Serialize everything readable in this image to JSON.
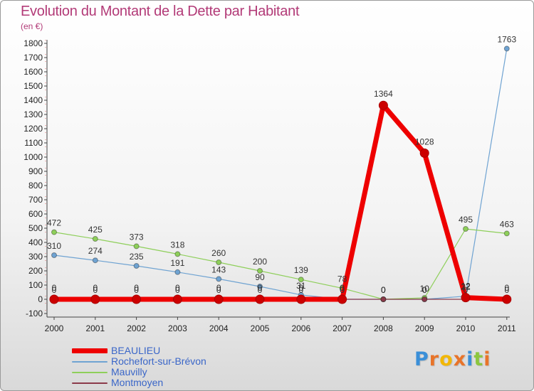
{
  "brand": {
    "text": "Proxiti",
    "colors": [
      "#3a8fd8",
      "#e8742a",
      "#f2b705",
      "#e8742a",
      "#3a8fd8",
      "#8cc63f",
      "#e8742a"
    ]
  },
  "chart_data": {
    "type": "line",
    "title": "Evolution du Montant de la Dette par Habitant",
    "unit_label": "(en €)",
    "x": [
      "2000",
      "2001",
      "2002",
      "2003",
      "2004",
      "2005",
      "2006",
      "2007",
      "2008",
      "2009",
      "2010",
      "2011"
    ],
    "ylim": [
      -100,
      1800
    ],
    "yticks": [
      -100,
      0,
      100,
      200,
      300,
      400,
      500,
      600,
      700,
      800,
      900,
      1000,
      1100,
      1200,
      1300,
      1400,
      1500,
      1600,
      1700,
      1800
    ],
    "grid": false,
    "legend_position": "bottom-left",
    "series": [
      {
        "name": "BEAULIEU",
        "color": "#ee0000",
        "width": 7,
        "labels": true,
        "values": [
          0,
          0,
          0,
          0,
          0,
          0,
          0,
          0,
          1364,
          1028,
          12,
          0
        ]
      },
      {
        "name": "Rochefort-sur-Brévon",
        "color": "#6fa3d2",
        "width": 1.2,
        "labels": true,
        "values": [
          310,
          274,
          235,
          191,
          143,
          90,
          31,
          0,
          0,
          0,
          22,
          1763
        ]
      },
      {
        "name": "Mauvilly",
        "color": "#8ecf5a",
        "width": 1.2,
        "labels": true,
        "values": [
          472,
          425,
          373,
          318,
          260,
          200,
          139,
          78,
          0,
          10,
          495,
          463
        ]
      },
      {
        "name": "Montmoyen",
        "color": "#8b3a4a",
        "width": 1.2,
        "labels": true,
        "values": [
          0,
          0,
          0,
          0,
          0,
          0,
          0,
          0,
          0,
          0,
          0,
          0
        ]
      }
    ]
  }
}
